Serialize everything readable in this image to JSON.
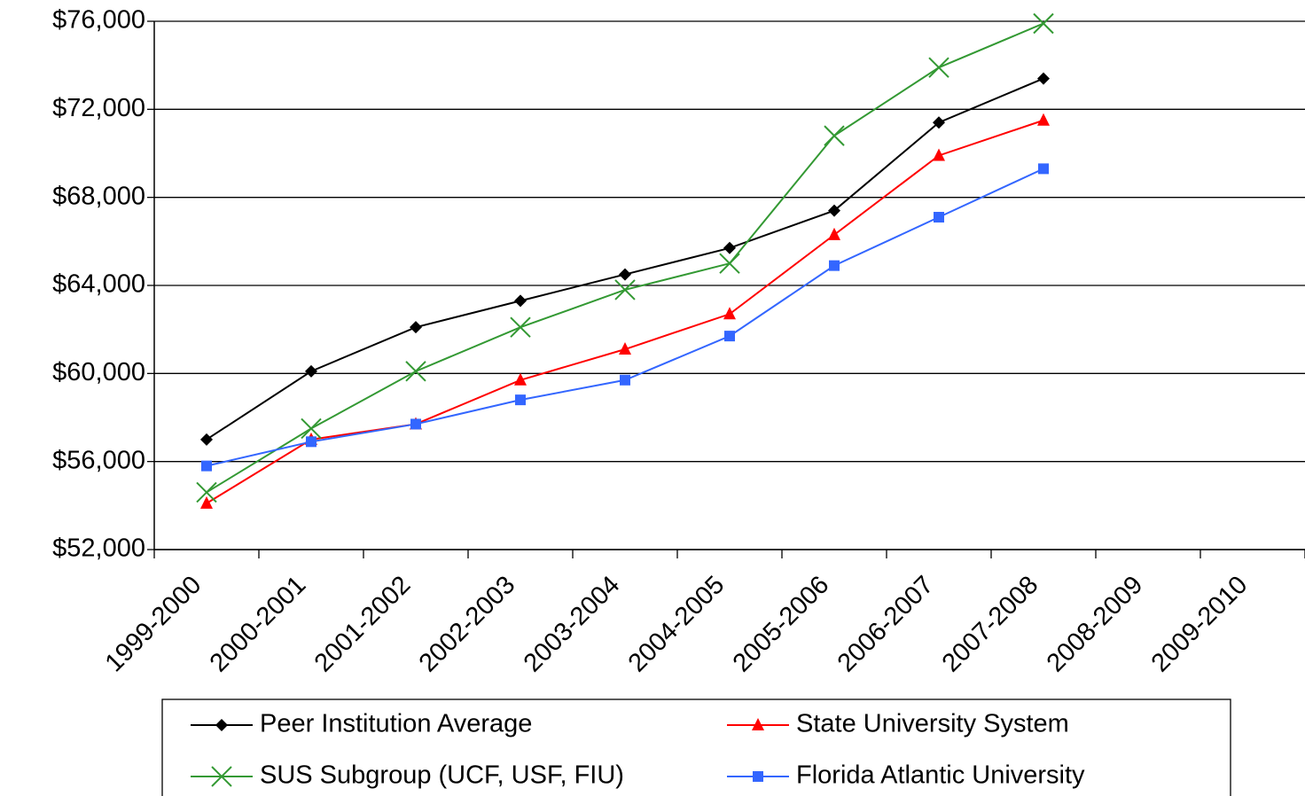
{
  "chart_data": {
    "type": "line",
    "categories": [
      "1999-2000",
      "2000-2001",
      "2001-2002",
      "2002-2003",
      "2003-2004",
      "2004-2005",
      "2005-2006",
      "2006-2007",
      "2007-2008",
      "2008-2009",
      "2009-2010"
    ],
    "series": [
      {
        "name": "Peer Institution Average",
        "color": "#000000",
        "marker": "diamond",
        "values": [
          57000,
          60100,
          62100,
          63300,
          64500,
          65700,
          67400,
          71400,
          73400,
          null,
          null
        ]
      },
      {
        "name": "State University System",
        "color": "#ff0000",
        "marker": "triangle",
        "values": [
          54100,
          57000,
          57700,
          59700,
          61100,
          62700,
          66300,
          69900,
          71500,
          null,
          null
        ]
      },
      {
        "name": "SUS Subgroup (UCF, USF, FIU)",
        "color": "#339933",
        "marker": "cross",
        "values": [
          54600,
          57500,
          60100,
          62100,
          63800,
          65000,
          70800,
          73900,
          75900,
          null,
          null
        ]
      },
      {
        "name": "Florida Atlantic University",
        "color": "#3366ff",
        "marker": "square",
        "values": [
          55800,
          56900,
          57700,
          58800,
          59700,
          61700,
          64900,
          67100,
          69300,
          null,
          null
        ]
      }
    ],
    "ylim": [
      52000,
      76000
    ],
    "yticks": [
      {
        "value": 52000,
        "label": "$52,000"
      },
      {
        "value": 56000,
        "label": "$56,000"
      },
      {
        "value": 60000,
        "label": "$60,000"
      },
      {
        "value": 64000,
        "label": "$64,000"
      },
      {
        "value": 68000,
        "label": "$68,000"
      },
      {
        "value": 72000,
        "label": "$72,000"
      },
      {
        "value": 76000,
        "label": "$76,000"
      }
    ],
    "grid": true
  }
}
